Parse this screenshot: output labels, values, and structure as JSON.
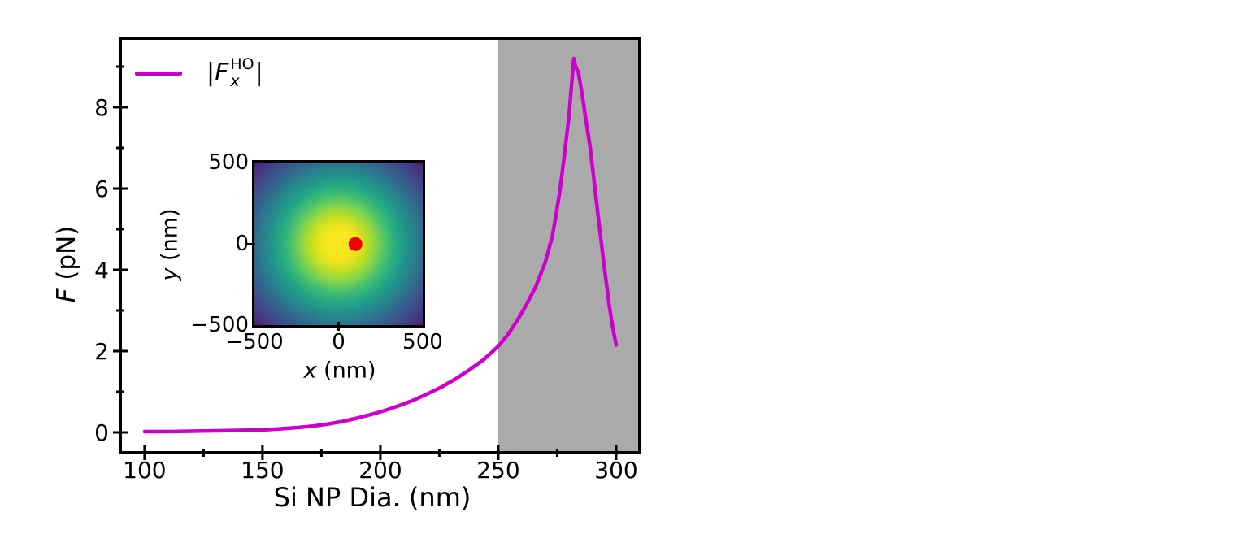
{
  "figure_background": "#ffffff",
  "chart_data": [
    {
      "type": "line",
      "title": "",
      "xlabel": "Si NP Dia. (nm)",
      "ylabel": "F (pN)",
      "ylabel_parts": {
        "symbol": "F",
        "unit": " (pN)"
      },
      "xlim": [
        89.7,
        310
      ],
      "ylim": [
        -0.5,
        9.7
      ],
      "xticks": [
        100,
        150,
        200,
        250,
        300
      ],
      "xticks_minor": [
        125,
        175,
        225,
        275
      ],
      "yticks": [
        0,
        2,
        4,
        6,
        8
      ],
      "yticks_minor": [
        1,
        3,
        5,
        7,
        9
      ],
      "tick_direction": "inout",
      "grid": false,
      "frame_color": "#000000",
      "shaded_band": {
        "x_from": 250,
        "x_to": 310,
        "color": "#aaaaaa"
      },
      "legend": {
        "position": "upper left",
        "entries": [
          {
            "label": "|Fx^HO|",
            "parts": {
              "open_bar": "|",
              "symbol": "F",
              "sub": "x",
              "sup": "HO",
              "close_bar": "|"
            },
            "color": "#cc00cc"
          }
        ]
      },
      "series": [
        {
          "name": "|Fx^HO|",
          "color": "#cc00cc",
          "points": [
            [
              100,
              0.02
            ],
            [
              110,
              0.02
            ],
            [
              120,
              0.03
            ],
            [
              130,
              0.04
            ],
            [
              140,
              0.05
            ],
            [
              150,
              0.06
            ],
            [
              158,
              0.09
            ],
            [
              165,
              0.12
            ],
            [
              172,
              0.16
            ],
            [
              178,
              0.21
            ],
            [
              184,
              0.27
            ],
            [
              190,
              0.35
            ],
            [
              196,
              0.44
            ],
            [
              202,
              0.54
            ],
            [
              208,
              0.66
            ],
            [
              214,
              0.79
            ],
            [
              220,
              0.95
            ],
            [
              226,
              1.12
            ],
            [
              232,
              1.32
            ],
            [
              238,
              1.55
            ],
            [
              244,
              1.8
            ],
            [
              250,
              2.12
            ],
            [
              254,
              2.4
            ],
            [
              258,
              2.75
            ],
            [
              262,
              3.15
            ],
            [
              266,
              3.6
            ],
            [
              270,
              4.2
            ],
            [
              273,
              4.85
            ],
            [
              274.5,
              5.35
            ],
            [
              276,
              5.9
            ],
            [
              278,
              6.8
            ],
            [
              280,
              7.8
            ],
            [
              281,
              8.5
            ],
            [
              282,
              9.2
            ],
            [
              282.8,
              9.0
            ],
            [
              284,
              8.85
            ],
            [
              285.5,
              8.35
            ],
            [
              287,
              7.75
            ],
            [
              289,
              7.0
            ],
            [
              291,
              6.0
            ],
            [
              293,
              5.0
            ],
            [
              295,
              4.05
            ],
            [
              297,
              3.15
            ],
            [
              298.5,
              2.6
            ],
            [
              300,
              2.15
            ]
          ]
        }
      ]
    },
    {
      "type": "heatmap",
      "content": "2D Gaussian focal-spot intensity centered at origin",
      "colormap": "viridis",
      "xlabel": "x (nm)",
      "ylabel": "y (nm)",
      "xlabel_parts": {
        "symbol": "x",
        "unit": " (nm)"
      },
      "ylabel_parts": {
        "symbol": "y",
        "unit": " (nm)"
      },
      "xlim": [
        -500,
        500
      ],
      "ylim": [
        -500,
        500
      ],
      "xticks": [
        -500,
        0,
        500
      ],
      "yticks": [
        500,
        0,
        -500
      ],
      "colormap_stops": [
        {
          "r": 0,
          "color": "#fde725"
        },
        {
          "r": 100,
          "color": "#f1e51d"
        },
        {
          "r": 160,
          "color": "#c5e021"
        },
        {
          "r": 220,
          "color": "#86d549"
        },
        {
          "r": 280,
          "color": "#4ac16d"
        },
        {
          "r": 340,
          "color": "#27ad81"
        },
        {
          "r": 400,
          "color": "#21958b"
        },
        {
          "r": 460,
          "color": "#2a7d8e"
        },
        {
          "r": 520,
          "color": "#33638d"
        },
        {
          "r": 580,
          "color": "#3d4e8a"
        },
        {
          "r": 640,
          "color": "#453781"
        },
        {
          "r": 710,
          "color": "#471d6e"
        },
        {
          "r": 790,
          "color": "#45075d"
        },
        {
          "r": 900,
          "color": "#440154"
        }
      ],
      "marker": {
        "x": 100,
        "y": 0,
        "color": "#ee0000",
        "radius_nm": 40
      }
    }
  ]
}
